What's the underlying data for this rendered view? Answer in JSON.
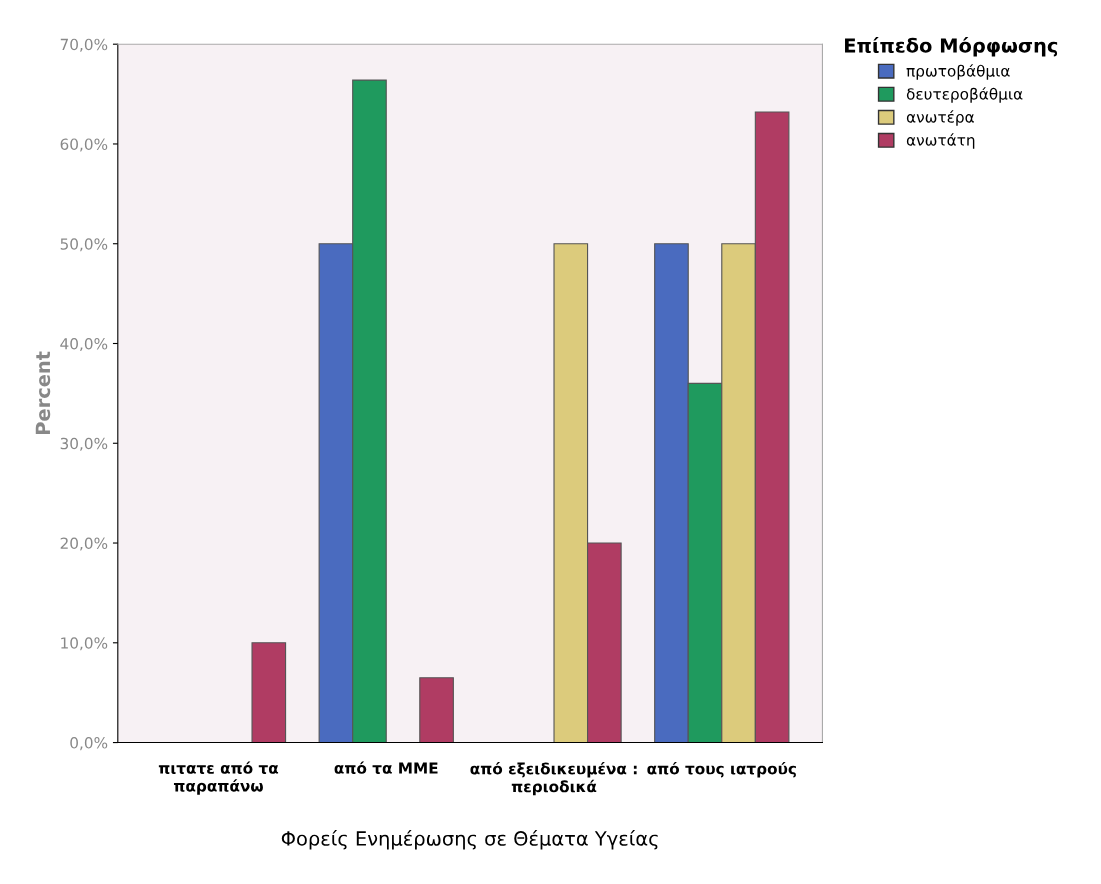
{
  "chart_data": {
    "type": "bar",
    "xlabel": "Φορείς Ενημέρωσης σε Θέματα Υγείας",
    "ylabel": "Percent",
    "legend_title": "Επίπεδο Μόρφωσης",
    "legend": "top right",
    "categories": [
      "πιτατε από τα\nπαραπάνω",
      "από τα ΜΜΕ",
      "από εξειδικευμένα :\nπεριοδικά",
      "από τους ιατρούς"
    ],
    "series": [
      {
        "name": "πρωτοβάθμια",
        "color": "#4a6bbf",
        "values": [
          null,
          50,
          null,
          50
        ]
      },
      {
        "name": "δευτεροβάθμια",
        "color": "#1f9a5e",
        "values": [
          null,
          66.4,
          null,
          36
        ]
      },
      {
        "name": "ανωτέρα",
        "color": "#dccb7c",
        "values": [
          null,
          null,
          50,
          50
        ]
      },
      {
        "name": "ανωτάτη",
        "color": "#b03c63",
        "values": [
          10,
          6.5,
          20,
          63.2
        ]
      }
    ],
    "ylim": [
      0,
      70
    ],
    "yticks": [
      {
        "value": 0,
        "label": "0,0%"
      },
      {
        "value": 10,
        "label": "10,0%"
      },
      {
        "value": 20,
        "label": "20,0%"
      },
      {
        "value": 30,
        "label": "30,0%"
      },
      {
        "value": 40,
        "label": "40,0%"
      },
      {
        "value": 50,
        "label": "50,0%"
      },
      {
        "value": 60,
        "label": "60,0%"
      },
      {
        "value": 70,
        "label": "70,0%"
      }
    ]
  }
}
